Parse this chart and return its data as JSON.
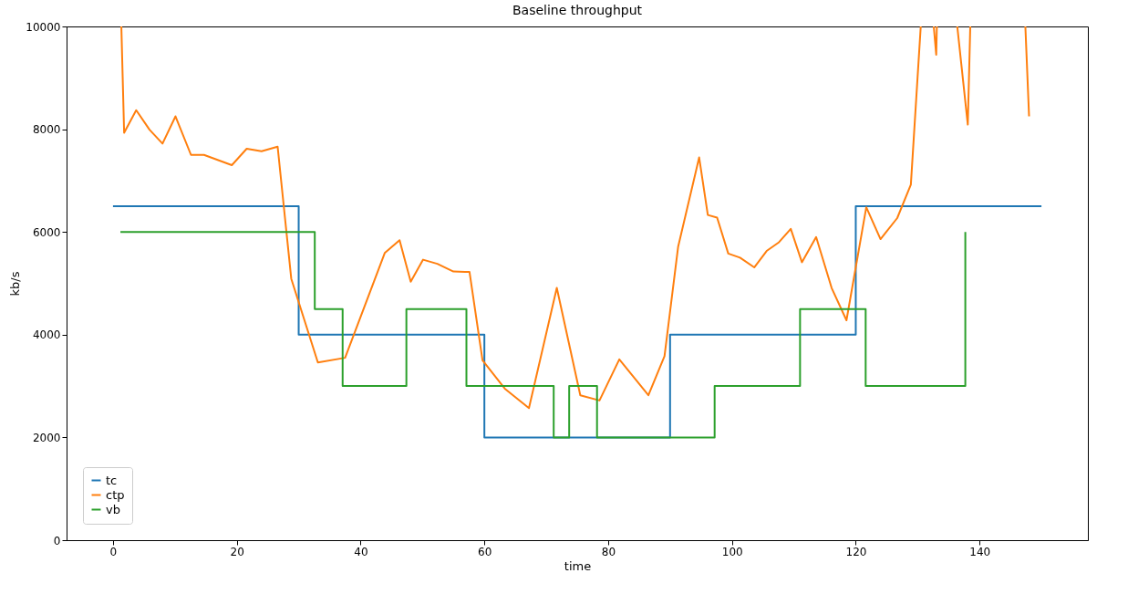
{
  "chart_data": {
    "type": "line",
    "title": "Baseline throughput",
    "xlabel": "time",
    "ylabel": "kb/s",
    "xlim": [
      -7.5,
      157.5
    ],
    "xticks": [
      0,
      20,
      40,
      60,
      80,
      100,
      120,
      140
    ],
    "ylim": [
      0,
      10000
    ],
    "yticks": [
      0,
      2000,
      4000,
      6000,
      8000,
      10000
    ],
    "grid": false,
    "legend": "bottom left",
    "series": [
      {
        "name": "tc",
        "type": "step",
        "color": "#1f77b4",
        "x": [
          0,
          30,
          60,
          90,
          120,
          150
        ],
        "values": [
          6500,
          4000,
          2000,
          4000,
          6500,
          6500
        ]
      },
      {
        "name": "ctp",
        "type": "line",
        "color": "#ff7f0e",
        "x": [
          1.35,
          1.8,
          3.75,
          5.9,
          8.0,
          10.1,
          12.6,
          14.7,
          19.2,
          21.6,
          24.0,
          26.6,
          28.8,
          33.1,
          37.5,
          43.9,
          46.3,
          48.1,
          50.1,
          52.4,
          55.0,
          57.6,
          59.7,
          63.3,
          67.2,
          71.7,
          75.5,
          78.6,
          81.8,
          86.5,
          89.1,
          91.3,
          94.7,
          96.1,
          97.6,
          99.4,
          101.3,
          103.6,
          105.6,
          107.6,
          109.5,
          111.3,
          113.6,
          116.1,
          118.5,
          121.7,
          124.0,
          126.7,
          128.9,
          130.5,
          131.5,
          132.6,
          133.0,
          133.1,
          134.5,
          136.4,
          138.1,
          138.5,
          143,
          147.4,
          148.0
        ],
        "values": [
          10000,
          7930,
          8370,
          7990,
          7720,
          8250,
          7500,
          7500,
          7300,
          7620,
          7570,
          7660,
          5090,
          3460,
          3550,
          5590,
          5840,
          5030,
          5460,
          5380,
          5230,
          5220,
          3500,
          2950,
          2570,
          4910,
          2820,
          2720,
          3520,
          2820,
          3580,
          5710,
          7450,
          6330,
          6280,
          5580,
          5500,
          5310,
          5630,
          5800,
          6060,
          5410,
          5900,
          4910,
          4280,
          6480,
          5860,
          6270,
          6920,
          10000,
          null,
          10000,
          9450,
          10000,
          null,
          10000,
          8090,
          10000,
          null,
          10000,
          8250
        ]
      },
      {
        "name": "vb",
        "type": "step",
        "color": "#2ca02c",
        "x": [
          1.2,
          32.6,
          37.1,
          47.4,
          57.1,
          71.2,
          73.7,
          78.2,
          97.2,
          111,
          121.6,
          137.7
        ],
        "values": [
          6000,
          4500,
          3000,
          4500,
          3000,
          2000,
          3000,
          2000,
          3000,
          4500,
          3000,
          6000
        ]
      }
    ]
  }
}
